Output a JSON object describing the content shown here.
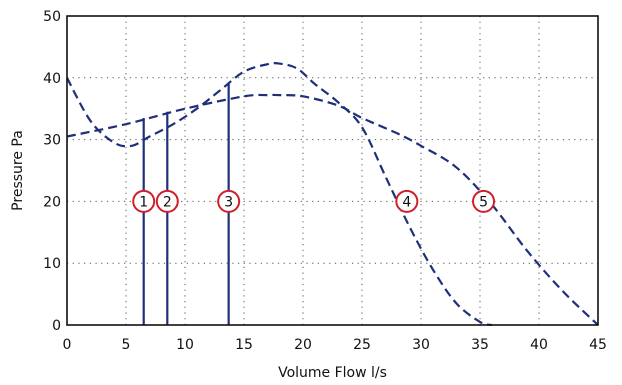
{
  "chart_data": {
    "type": "line",
    "xlabel": "Volume Flow l/s",
    "ylabel": "Pressure Pa",
    "xlim": [
      0,
      45
    ],
    "ylim": [
      0,
      50
    ],
    "x_ticks": [
      "0",
      "5",
      "10",
      "15",
      "20",
      "25",
      "30",
      "35",
      "40",
      "45"
    ],
    "y_ticks": [
      "0",
      "10",
      "20",
      "30",
      "40",
      "50"
    ],
    "grid": true,
    "line_color": "#1f2f7a",
    "marker_color": "#d01f2a",
    "series": [
      {
        "style": "dashed",
        "x": [
          0,
          2,
          4,
          5.5,
          7,
          9,
          11,
          13,
          15,
          17,
          18,
          19.5,
          21,
          23,
          25,
          27,
          29,
          31,
          33,
          35,
          36
        ],
        "y": [
          40,
          33,
          29.5,
          29,
          30.5,
          32.5,
          35,
          38,
          41,
          42.2,
          42.3,
          41.5,
          39,
          36,
          32,
          24,
          16,
          9,
          3.5,
          0.5,
          0
        ]
      },
      {
        "style": "dashed",
        "x": [
          0,
          5,
          10,
          15,
          17,
          18,
          20,
          23,
          25,
          28,
          30,
          33,
          36,
          39,
          42,
          45
        ],
        "y": [
          30.5,
          32.5,
          35,
          37,
          37.2,
          37.2,
          37,
          35.5,
          33.5,
          31,
          29,
          25.5,
          19.5,
          12,
          5.5,
          0
        ]
      }
    ],
    "vertical_lines": [
      {
        "x": 6.5,
        "y_top": 33.5
      },
      {
        "x": 8.5,
        "y_top": 34.5
      },
      {
        "x": 13.7,
        "y_top": 39
      }
    ],
    "markers": [
      {
        "label": "1",
        "x": 6.5,
        "y": 20
      },
      {
        "label": "2",
        "x": 8.5,
        "y": 20
      },
      {
        "label": "3",
        "x": 13.7,
        "y": 20
      },
      {
        "label": "4",
        "x": 28.8,
        "y": 20
      },
      {
        "label": "5",
        "x": 35.3,
        "y": 20
      }
    ]
  }
}
